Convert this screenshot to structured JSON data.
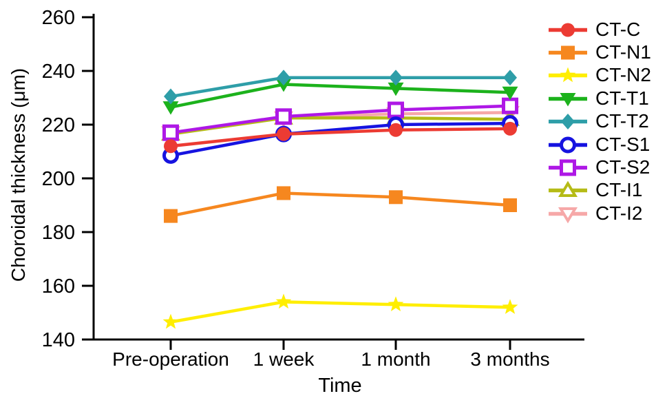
{
  "figure": {
    "background": "#ffffff",
    "text_color": "#000000",
    "axis_color": "#000000"
  },
  "chart_data": {
    "type": "line",
    "title": "",
    "xlabel": "Time",
    "ylabel": "Choroidal thickness (μm)",
    "categories": [
      "Pre-operation",
      "1 week",
      "1 month",
      "3 months"
    ],
    "ylim": [
      140,
      260
    ],
    "yticks": [
      140,
      160,
      180,
      200,
      220,
      240,
      260
    ],
    "grid": false,
    "legend_position": "right",
    "series": [
      {
        "name": "CT-C",
        "color": "#EC3B33",
        "marker": "circle",
        "filled": true,
        "z": 8,
        "values": [
          212,
          216.5,
          218,
          218.5
        ]
      },
      {
        "name": "CT-N1",
        "color": "#F6871F",
        "marker": "square",
        "filled": true,
        "z": 4,
        "values": [
          186,
          194.5,
          193,
          190
        ]
      },
      {
        "name": "CT-N2",
        "color": "#FFEE00",
        "marker": "star",
        "filled": true,
        "z": 3,
        "values": [
          146.5,
          154,
          153,
          152
        ]
      },
      {
        "name": "CT-T1",
        "color": "#1CB21C",
        "marker": "triangle-down",
        "filled": true,
        "z": 5,
        "values": [
          226.5,
          235,
          233.5,
          232
        ]
      },
      {
        "name": "CT-T2",
        "color": "#2E9EA8",
        "marker": "diamond",
        "filled": true,
        "z": 6,
        "values": [
          230.5,
          237.5,
          237.5,
          237.5
        ]
      },
      {
        "name": "CT-S1",
        "color": "#1613E0",
        "marker": "circle",
        "filled": false,
        "z": 7,
        "values": [
          208.5,
          216.5,
          220,
          220.5
        ]
      },
      {
        "name": "CT-S2",
        "color": "#AE18E6",
        "marker": "square",
        "filled": false,
        "z": 2,
        "values": [
          217,
          223,
          225.5,
          227
        ]
      },
      {
        "name": "CT-I1",
        "color": "#B5BB16",
        "marker": "triangle-up",
        "filled": false,
        "z": 1,
        "values": [
          216.5,
          222.5,
          222.5,
          222
        ]
      },
      {
        "name": "CT-I2",
        "color": "#F6A8A8",
        "marker": "triangle-down",
        "filled": false,
        "z": 0,
        "values": [
          217,
          222.5,
          224,
          224.5
        ]
      }
    ]
  }
}
